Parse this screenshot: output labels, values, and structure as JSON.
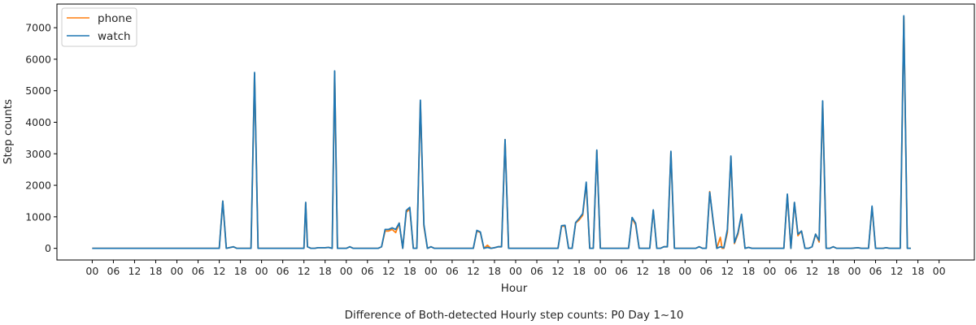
{
  "caption": "Difference of Both-detected Hourly step counts: P0 Day 1~10",
  "chart_data": {
    "type": "line",
    "title": "",
    "xlabel": "Hour",
    "ylabel": "Step counts",
    "xlim": [
      -10,
      250
    ],
    "ylim": [
      -370,
      7750
    ],
    "yticks": [
      0,
      1000,
      2000,
      3000,
      4000,
      5000,
      6000,
      7000
    ],
    "xtick_positions": [
      0,
      6,
      12,
      18,
      24,
      30,
      36,
      42,
      48,
      54,
      60,
      66,
      72,
      78,
      84,
      90,
      96,
      102,
      108,
      114,
      120,
      126,
      132,
      138,
      144,
      150,
      156,
      162,
      168,
      174,
      180,
      186,
      192,
      198,
      204,
      210,
      216,
      222,
      228,
      234,
      240
    ],
    "xtick_labels": [
      "00",
      "06",
      "12",
      "18",
      "00",
      "06",
      "12",
      "18",
      "00",
      "06",
      "12",
      "18",
      "00",
      "06",
      "12",
      "18",
      "00",
      "06",
      "12",
      "18",
      "00",
      "06",
      "12",
      "18",
      "00",
      "06",
      "12",
      "18",
      "00",
      "06",
      "12",
      "18",
      "00",
      "06",
      "12",
      "18",
      "00",
      "06",
      "12",
      "18",
      "00"
    ],
    "grid": false,
    "legend_position": "top-left",
    "series": [
      {
        "name": "phone",
        "color": "#ff7f0e",
        "points": [
          [
            0,
            0
          ],
          [
            36,
            0
          ],
          [
            37,
            1500
          ],
          [
            38,
            0
          ],
          [
            40,
            50
          ],
          [
            41,
            0
          ],
          [
            45,
            0
          ],
          [
            46,
            5550
          ],
          [
            47,
            0
          ],
          [
            60,
            0
          ],
          [
            60.5,
            1450
          ],
          [
            61,
            50
          ],
          [
            62,
            0
          ],
          [
            63,
            0
          ],
          [
            64,
            20
          ],
          [
            66,
            20
          ],
          [
            67,
            30
          ],
          [
            68,
            0
          ],
          [
            68.7,
            5600
          ],
          [
            69.5,
            0
          ],
          [
            72,
            0
          ],
          [
            73,
            50
          ],
          [
            74,
            0
          ],
          [
            81,
            0
          ],
          [
            82,
            50
          ],
          [
            83,
            550
          ],
          [
            84,
            550
          ],
          [
            85,
            600
          ],
          [
            86,
            500
          ],
          [
            87,
            800
          ],
          [
            88,
            0
          ],
          [
            89,
            1150
          ],
          [
            90,
            1250
          ],
          [
            91,
            0
          ],
          [
            92,
            0
          ],
          [
            93,
            4650
          ],
          [
            94,
            700
          ],
          [
            95,
            0
          ],
          [
            96,
            50
          ],
          [
            97,
            0
          ],
          [
            108,
            0
          ],
          [
            109,
            550
          ],
          [
            110,
            500
          ],
          [
            111,
            0
          ],
          [
            112,
            100
          ],
          [
            113,
            0
          ],
          [
            114,
            20
          ],
          [
            115,
            50
          ],
          [
            116,
            50
          ],
          [
            117,
            3450
          ],
          [
            118,
            0
          ],
          [
            125,
            0
          ],
          [
            132,
            0
          ],
          [
            133,
            700
          ],
          [
            134,
            700
          ],
          [
            135,
            0
          ],
          [
            136,
            0
          ],
          [
            137,
            800
          ],
          [
            138,
            900
          ],
          [
            139,
            1050
          ],
          [
            140,
            2050
          ],
          [
            141,
            0
          ],
          [
            142,
            0
          ],
          [
            143,
            3100
          ],
          [
            144,
            0
          ],
          [
            152,
            0
          ],
          [
            153,
            950
          ],
          [
            154,
            750
          ],
          [
            155,
            0
          ],
          [
            156,
            0
          ],
          [
            158,
            0
          ],
          [
            159,
            1200
          ],
          [
            160,
            0
          ],
          [
            161,
            0
          ],
          [
            162,
            50
          ],
          [
            163,
            50
          ],
          [
            164,
            3050
          ],
          [
            165,
            0
          ],
          [
            170,
            0
          ],
          [
            171,
            0
          ],
          [
            172,
            50
          ],
          [
            173,
            0
          ],
          [
            174,
            0
          ],
          [
            175,
            1800
          ],
          [
            176,
            800
          ],
          [
            177,
            0
          ],
          [
            178,
            350
          ],
          [
            178.5,
            0
          ],
          [
            179,
            0
          ],
          [
            180,
            500
          ],
          [
            181,
            2900
          ],
          [
            182,
            150
          ],
          [
            183,
            450
          ],
          [
            184,
            1050
          ],
          [
            185,
            0
          ],
          [
            186,
            30
          ],
          [
            187,
            0
          ],
          [
            196,
            0
          ],
          [
            197,
            1700
          ],
          [
            198,
            0
          ],
          [
            199,
            1450
          ],
          [
            200,
            400
          ],
          [
            201,
            550
          ],
          [
            202,
            0
          ],
          [
            203,
            0
          ],
          [
            204,
            50
          ],
          [
            205,
            450
          ],
          [
            206,
            200
          ],
          [
            207,
            4650
          ],
          [
            208,
            0
          ],
          [
            209,
            0
          ],
          [
            210,
            50
          ],
          [
            211,
            0
          ],
          [
            215,
            0
          ],
          [
            217,
            20
          ],
          [
            218,
            0
          ],
          [
            220,
            0
          ],
          [
            221,
            1300
          ],
          [
            222,
            0
          ],
          [
            223,
            0
          ],
          [
            224,
            0
          ],
          [
            225,
            20
          ],
          [
            226,
            0
          ],
          [
            229,
            0
          ],
          [
            230,
            7350
          ],
          [
            231,
            0
          ],
          [
            232,
            0
          ]
        ]
      },
      {
        "name": "watch",
        "color": "#1f77b4",
        "points": [
          [
            0,
            0
          ],
          [
            36,
            0
          ],
          [
            37,
            1500
          ],
          [
            38,
            0
          ],
          [
            40,
            50
          ],
          [
            41,
            0
          ],
          [
            45,
            0
          ],
          [
            46,
            5580
          ],
          [
            47,
            0
          ],
          [
            60,
            0
          ],
          [
            60.5,
            1460
          ],
          [
            61,
            50
          ],
          [
            62,
            0
          ],
          [
            63,
            0
          ],
          [
            64,
            20
          ],
          [
            66,
            20
          ],
          [
            67,
            30
          ],
          [
            68,
            0
          ],
          [
            68.7,
            5630
          ],
          [
            69.5,
            0
          ],
          [
            72,
            0
          ],
          [
            73,
            50
          ],
          [
            74,
            0
          ],
          [
            81,
            0
          ],
          [
            82,
            50
          ],
          [
            83,
            600
          ],
          [
            84,
            600
          ],
          [
            85,
            650
          ],
          [
            86,
            600
          ],
          [
            87,
            800
          ],
          [
            88,
            0
          ],
          [
            89,
            1200
          ],
          [
            90,
            1300
          ],
          [
            91,
            0
          ],
          [
            92,
            0
          ],
          [
            93,
            4700
          ],
          [
            94,
            750
          ],
          [
            95,
            0
          ],
          [
            96,
            50
          ],
          [
            97,
            0
          ],
          [
            108,
            0
          ],
          [
            109,
            570
          ],
          [
            110,
            520
          ],
          [
            111,
            0
          ],
          [
            112,
            30
          ],
          [
            113,
            0
          ],
          [
            114,
            20
          ],
          [
            115,
            50
          ],
          [
            116,
            50
          ],
          [
            117,
            3450
          ],
          [
            118,
            0
          ],
          [
            125,
            0
          ],
          [
            132,
            0
          ],
          [
            133,
            720
          ],
          [
            134,
            730
          ],
          [
            135,
            0
          ],
          [
            136,
            0
          ],
          [
            137,
            820
          ],
          [
            138,
            950
          ],
          [
            139,
            1100
          ],
          [
            140,
            2100
          ],
          [
            141,
            0
          ],
          [
            142,
            0
          ],
          [
            143,
            3120
          ],
          [
            144,
            0
          ],
          [
            152,
            0
          ],
          [
            153,
            980
          ],
          [
            154,
            800
          ],
          [
            155,
            0
          ],
          [
            156,
            0
          ],
          [
            158,
            0
          ],
          [
            159,
            1220
          ],
          [
            160,
            0
          ],
          [
            161,
            0
          ],
          [
            162,
            50
          ],
          [
            163,
            50
          ],
          [
            164,
            3080
          ],
          [
            165,
            0
          ],
          [
            170,
            0
          ],
          [
            171,
            0
          ],
          [
            172,
            50
          ],
          [
            173,
            0
          ],
          [
            174,
            0
          ],
          [
            175,
            1780
          ],
          [
            176,
            850
          ],
          [
            177,
            0
          ],
          [
            178,
            50
          ],
          [
            179,
            20
          ],
          [
            180,
            600
          ],
          [
            181,
            2930
          ],
          [
            182,
            180
          ],
          [
            183,
            500
          ],
          [
            184,
            1080
          ],
          [
            185,
            0
          ],
          [
            186,
            30
          ],
          [
            187,
            0
          ],
          [
            196,
            0
          ],
          [
            197,
            1720
          ],
          [
            198,
            0
          ],
          [
            199,
            1460
          ],
          [
            200,
            450
          ],
          [
            201,
            550
          ],
          [
            202,
            0
          ],
          [
            203,
            0
          ],
          [
            204,
            50
          ],
          [
            205,
            450
          ],
          [
            206,
            250
          ],
          [
            207,
            4680
          ],
          [
            208,
            0
          ],
          [
            209,
            0
          ],
          [
            210,
            50
          ],
          [
            211,
            0
          ],
          [
            215,
            0
          ],
          [
            217,
            20
          ],
          [
            218,
            0
          ],
          [
            220,
            0
          ],
          [
            221,
            1340
          ],
          [
            222,
            0
          ],
          [
            223,
            0
          ],
          [
            224,
            0
          ],
          [
            225,
            20
          ],
          [
            226,
            0
          ],
          [
            229,
            0
          ],
          [
            230,
            7380
          ],
          [
            231,
            0
          ],
          [
            232,
            0
          ]
        ]
      }
    ]
  }
}
